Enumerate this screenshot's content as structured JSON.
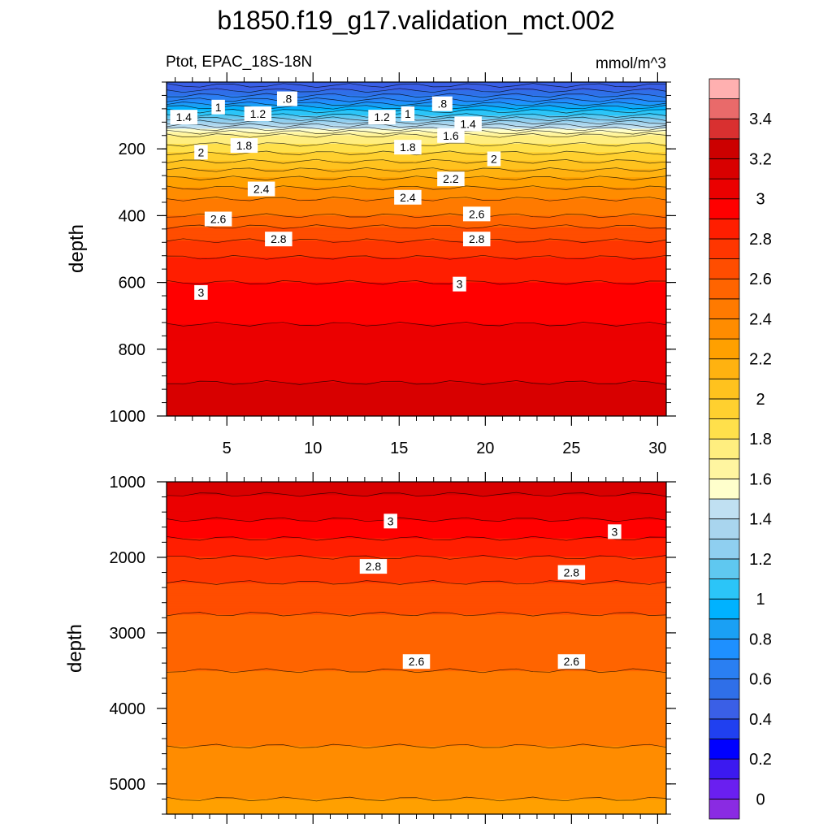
{
  "figure": {
    "title": "b1850.f19_g17.validation_mct.002",
    "left_subtitle": "Ptot, EPAC_18S-18N",
    "right_subtitle": "mmol/m^3"
  },
  "chart_data": [
    {
      "type": "heatmap",
      "subtype": "filled-contour",
      "panel": "upper",
      "title": "",
      "xlabel": "",
      "ylabel": "depth",
      "xlim": [
        1.5,
        30.5
      ],
      "ylim": [
        1000,
        0
      ],
      "y_reversed": true,
      "x_ticks": [
        5,
        10,
        15,
        20,
        25,
        30
      ],
      "x_tick_labels": [
        "5",
        "10",
        "15",
        "20",
        "25",
        "30"
      ],
      "y_ticks": [
        200,
        400,
        600,
        800,
        1000
      ],
      "y_tick_labels": [
        "200",
        "400",
        "600",
        "800",
        "1000"
      ],
      "depth_profile": [
        {
          "depth": 10,
          "value": 0.5
        },
        {
          "depth": 40,
          "value": 0.7
        },
        {
          "depth": 60,
          "value": 0.85
        },
        {
          "depth": 80,
          "value": 1.05
        },
        {
          "depth": 100,
          "value": 1.2
        },
        {
          "depth": 120,
          "value": 1.4
        },
        {
          "depth": 140,
          "value": 1.6
        },
        {
          "depth": 160,
          "value": 1.8
        },
        {
          "depth": 200,
          "value": 1.95
        },
        {
          "depth": 250,
          "value": 2.15
        },
        {
          "depth": 300,
          "value": 2.35
        },
        {
          "depth": 350,
          "value": 2.5
        },
        {
          "depth": 400,
          "value": 2.6
        },
        {
          "depth": 450,
          "value": 2.75
        },
        {
          "depth": 500,
          "value": 2.85
        },
        {
          "depth": 550,
          "value": 2.95
        },
        {
          "depth": 650,
          "value": 3.05
        },
        {
          "depth": 800,
          "value": 3.15
        },
        {
          "depth": 1000,
          "value": 3.25
        }
      ],
      "contour_labels": [
        {
          "text": ".8",
          "x": 8.5,
          "y": 50
        },
        {
          "text": ".8",
          "x": 17.5,
          "y": 65
        },
        {
          "text": "1",
          "x": 4.5,
          "y": 75
        },
        {
          "text": "1",
          "x": 15.5,
          "y": 95
        },
        {
          "text": "1.2",
          "x": 6.8,
          "y": 95
        },
        {
          "text": "1.2",
          "x": 14,
          "y": 105
        },
        {
          "text": "1.4",
          "x": 2.5,
          "y": 105
        },
        {
          "text": "1.4",
          "x": 19,
          "y": 125
        },
        {
          "text": "1.6",
          "x": 18,
          "y": 160
        },
        {
          "text": "1.8",
          "x": 6,
          "y": 190
        },
        {
          "text": "1.8",
          "x": 15.5,
          "y": 195
        },
        {
          "text": "2",
          "x": 3.5,
          "y": 210
        },
        {
          "text": "2",
          "x": 20.5,
          "y": 230
        },
        {
          "text": "2.2",
          "x": 18,
          "y": 290
        },
        {
          "text": "2.4",
          "x": 7,
          "y": 320
        },
        {
          "text": "2.4",
          "x": 15.5,
          "y": 345
        },
        {
          "text": "2.6",
          "x": 4.5,
          "y": 410
        },
        {
          "text": "2.6",
          "x": 19.5,
          "y": 395
        },
        {
          "text": "2.8",
          "x": 8,
          "y": 470
        },
        {
          "text": "2.8",
          "x": 19.5,
          "y": 470
        },
        {
          "text": "3",
          "x": 3.5,
          "y": 630
        },
        {
          "text": "3",
          "x": 18.5,
          "y": 605
        }
      ]
    },
    {
      "type": "heatmap",
      "subtype": "filled-contour",
      "panel": "lower",
      "title": "",
      "xlabel": "",
      "ylabel": "depth",
      "xlim": [
        1.5,
        30.5
      ],
      "ylim": [
        5400,
        1000
      ],
      "y_reversed": true,
      "y_ticks": [
        1000,
        2000,
        3000,
        4000,
        5000
      ],
      "y_tick_labels": [
        "1000",
        "2000",
        "3000",
        "4000",
        "5000"
      ],
      "depth_profile": [
        {
          "depth": 1000,
          "value": 3.25
        },
        {
          "depth": 1500,
          "value": 3.1
        },
        {
          "depth": 2000,
          "value": 2.9
        },
        {
          "depth": 2500,
          "value": 2.75
        },
        {
          "depth": 3000,
          "value": 2.65
        },
        {
          "depth": 4000,
          "value": 2.55
        },
        {
          "depth": 5000,
          "value": 2.45
        },
        {
          "depth": 5400,
          "value": 2.35
        }
      ],
      "contour_labels": [
        {
          "text": "3",
          "x": 14.5,
          "y": 1520
        },
        {
          "text": "3",
          "x": 27.5,
          "y": 1660
        },
        {
          "text": "2.8",
          "x": 13.5,
          "y": 2120
        },
        {
          "text": "2.8",
          "x": 25,
          "y": 2200
        },
        {
          "text": "2.6",
          "x": 16,
          "y": 3380
        },
        {
          "text": "2.6",
          "x": 25,
          "y": 3380
        }
      ]
    }
  ],
  "colorbar": {
    "tick_labels": [
      "0",
      "0.2",
      "0.4",
      "0.6",
      "0.8",
      "1",
      "1.2",
      "1.4",
      "1.6",
      "1.8",
      "2",
      "2.2",
      "2.4",
      "2.6",
      "2.8",
      "3",
      "3.2",
      "3.4"
    ],
    "colors_bottom_to_top": [
      "#8a2be2",
      "#6a1ff0",
      "#3c19f0",
      "#0000ff",
      "#2040f0",
      "#3a5fe6",
      "#2f6fe8",
      "#2a7ff2",
      "#1e90ff",
      "#1aa0f4",
      "#00b2ff",
      "#2bc5f8",
      "#5fc8f0",
      "#8fcff0",
      "#a9d5ee",
      "#c0e0f2",
      "#ffffcc",
      "#fff5a0",
      "#ffee7f",
      "#ffe04b",
      "#ffd02f",
      "#ffc21e",
      "#ffb210",
      "#ffa000",
      "#ff8c00",
      "#ff7a00",
      "#ff6400",
      "#ff4d00",
      "#ff3600",
      "#ff1e00",
      "#ff0000",
      "#eb0000",
      "#d80000",
      "#cc0000",
      "#d93030",
      "#e96a6a",
      "#ffb0b0"
    ]
  }
}
